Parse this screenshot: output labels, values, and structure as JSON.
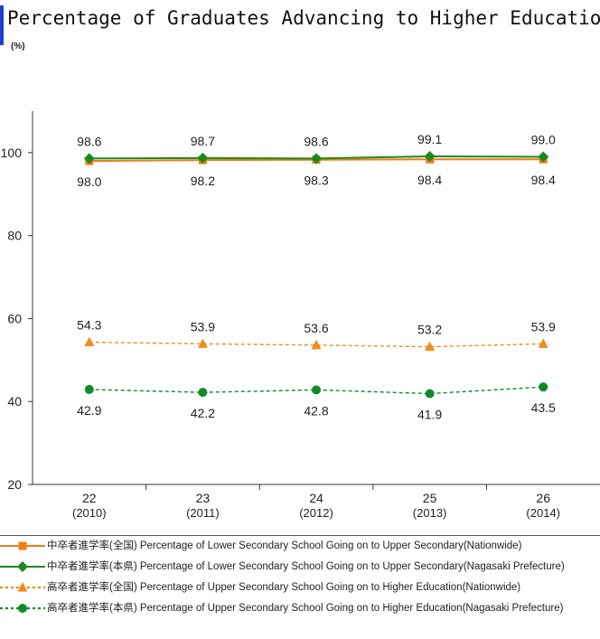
{
  "title": "Percentage of Graduates Advancing to Higher Education",
  "unit_label": "(%)",
  "chart_data": {
    "type": "line",
    "categories": [
      [
        "22",
        "(2010)"
      ],
      [
        "23",
        "(2011)"
      ],
      [
        "24",
        "(2012)"
      ],
      [
        "25",
        "(2013)"
      ],
      [
        "26",
        "(2014)"
      ]
    ],
    "ylim": [
      20,
      110
    ],
    "yticks": [
      20,
      40,
      60,
      80,
      100
    ],
    "series": [
      {
        "name": "中卒者進学率(全国) Percentage of Lower Secondary School Going on to Upper Secondary(Nationwide)",
        "values": [
          98.0,
          98.2,
          98.3,
          98.4,
          98.4
        ],
        "labels": [
          "98.0",
          "98.2",
          "98.3",
          "98.4",
          "98.4"
        ],
        "label_position": "below",
        "color": "#f07c14",
        "dash": "solid",
        "marker": "square"
      },
      {
        "name": "中卒者進学率(本県) Percentage of Lower Secondary School Going on to Upper Secondary(Nagasaki Prefecture)",
        "values": [
          98.6,
          98.7,
          98.6,
          99.1,
          99.0
        ],
        "labels": [
          "98.6",
          "98.7",
          "98.6",
          "99.1",
          "99.0"
        ],
        "label_position": "above",
        "color": "#1a8a1a",
        "dash": "solid",
        "marker": "diamond"
      },
      {
        "name": "高卒者進学率(全国) Percentage of Upper Secondary School Going on to Higher Education(Nationwide)",
        "values": [
          54.3,
          53.9,
          53.6,
          53.2,
          53.9
        ],
        "labels": [
          "54.3",
          "53.9",
          "53.6",
          "53.2",
          "53.9"
        ],
        "label_position": "above",
        "color": "#f08c1c",
        "dash": "dashed",
        "marker": "triangle"
      },
      {
        "name": "高卒者進学率(本県) Percentage of Upper Secondary School Going on to Higher Education(Nagasaki Prefecture)",
        "values": [
          42.9,
          42.2,
          42.8,
          41.9,
          43.5
        ],
        "labels": [
          "42.9",
          "42.2",
          "42.8",
          "41.9",
          "43.5"
        ],
        "label_position": "below",
        "color": "#0f8a2a",
        "dash": "dashed",
        "marker": "circle"
      }
    ],
    "grid": false,
    "legend_position": "bottom"
  }
}
